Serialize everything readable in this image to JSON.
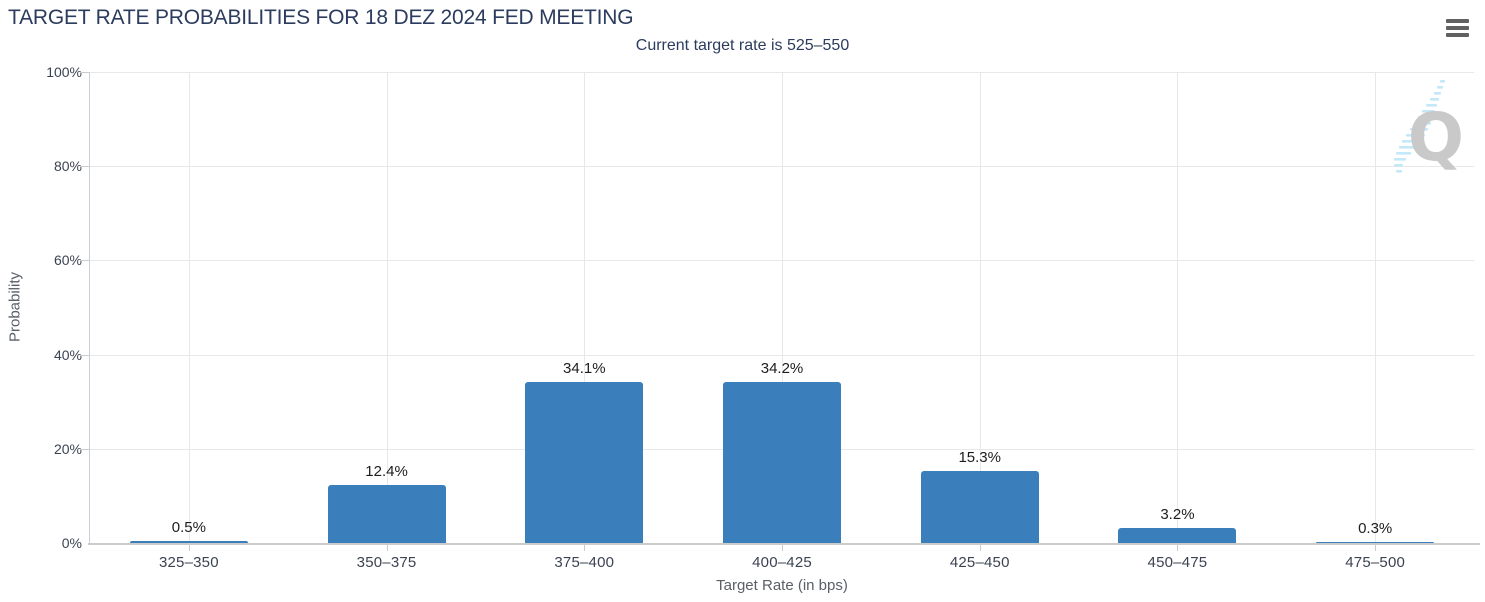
{
  "header": {
    "title": "TARGET RATE PROBABILITIES FOR 18 DEZ 2024 FED MEETING",
    "subtitle": "Current target rate is 525–550"
  },
  "menu": {
    "icon": "hamburger-menu-icon"
  },
  "watermark": {
    "letter": "Q"
  },
  "colors": {
    "bar": "#3a7fbc",
    "title_text": "#2c3c5e",
    "grid": "#e8e8e8",
    "axis": "#cbcbcb",
    "yaxis": "#c9ced8",
    "tick_label": "#3b4352",
    "axis_title": "#5a6068",
    "data_label": "#1d1d1d",
    "menu_icon": "#616161",
    "watermark_letter": "#c9c9c9",
    "watermark_dash": "#c3e8f7"
  },
  "chart_data": {
    "type": "bar",
    "title": "TARGET RATE PROBABILITIES FOR 18 DEZ 2024 FED MEETING",
    "subtitle": "Current target rate is 525–550",
    "categories": [
      "325–350",
      "350–375",
      "375–400",
      "400–425",
      "425–450",
      "450–475",
      "475–500"
    ],
    "values": [
      0.5,
      12.4,
      34.1,
      34.2,
      15.3,
      3.2,
      0.3
    ],
    "data_labels": [
      "0.5%",
      "12.4%",
      "34.1%",
      "34.2%",
      "15.3%",
      "3.2%",
      "0.3%"
    ],
    "xlabel": "Target Rate (in bps)",
    "ylabel": "Probability",
    "ylim": [
      0,
      100
    ],
    "yticks": [
      0,
      20,
      40,
      60,
      80,
      100
    ],
    "ytick_labels": [
      "0%",
      "20%",
      "40%",
      "60%",
      "80%",
      "100%"
    ],
    "grid": true,
    "legend": false
  }
}
